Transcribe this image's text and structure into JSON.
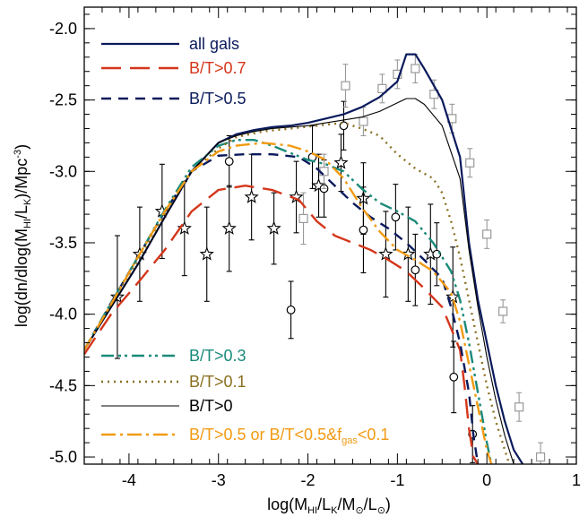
{
  "chart_data": {
    "type": "line",
    "xlabel": "log(MHI/LK/M⊙/L⊙)",
    "ylabel": "log(dn/dlog(MHI/LK)/Mpc⁻³)",
    "xlim": [
      -4.5,
      1.0
    ],
    "ylim": [
      -5.05,
      -1.85
    ],
    "x_ticks": [
      -4,
      -3,
      -2,
      -1,
      0,
      1
    ],
    "x_tick_labels": [
      "-4",
      "-3",
      "-2",
      "-1",
      "0",
      "1"
    ],
    "y_ticks": [
      -5.0,
      -4.5,
      -4.0,
      -3.5,
      -3.0,
      -2.5,
      -2.0
    ],
    "y_tick_labels": [
      "-5.0",
      "-4.5",
      "-4.0",
      "-3.5",
      "-3.0",
      "-2.5",
      "-2.0"
    ],
    "grid": false,
    "legend_placement": [
      "top-left",
      "bottom-left"
    ],
    "series": [
      {
        "name": "all gals",
        "color": "#0a1a5c",
        "dash": "solid",
        "width": 2.2,
        "x": [
          -4.5,
          -4.2,
          -3.9,
          -3.6,
          -3.3,
          -3.0,
          -2.8,
          -2.6,
          -2.4,
          -2.2,
          -2.0,
          -1.8,
          -1.6,
          -1.4,
          -1.2,
          -1.0,
          -0.9,
          -0.8,
          -0.7,
          -0.5,
          -0.3,
          -0.2,
          -0.1,
          0.0,
          0.1,
          0.2,
          0.3,
          0.4
        ],
        "y": [
          -4.25,
          -3.95,
          -3.65,
          -3.32,
          -3.0,
          -2.8,
          -2.74,
          -2.71,
          -2.69,
          -2.68,
          -2.66,
          -2.63,
          -2.6,
          -2.55,
          -2.48,
          -2.37,
          -2.18,
          -2.18,
          -2.28,
          -2.5,
          -2.9,
          -3.5,
          -3.9,
          -4.2,
          -4.5,
          -4.75,
          -4.95,
          -5.05
        ]
      },
      {
        "name": "B/T>0.7",
        "color": "#d4361b",
        "dash": "long-dash",
        "width": 2.4,
        "x": [
          -4.5,
          -4.2,
          -3.9,
          -3.6,
          -3.3,
          -3.0,
          -2.7,
          -2.4,
          -2.1,
          -1.9,
          -1.7,
          -1.5,
          -1.3,
          -1.1,
          -0.9,
          -0.7,
          -0.5,
          -0.4,
          -0.3,
          -0.25,
          -0.2,
          -0.15,
          -0.1
        ],
        "y": [
          -4.28,
          -4.0,
          -3.78,
          -3.55,
          -3.28,
          -3.13,
          -3.1,
          -3.13,
          -3.2,
          -3.35,
          -3.45,
          -3.5,
          -3.55,
          -3.62,
          -3.7,
          -3.82,
          -3.95,
          -4.1,
          -4.25,
          -4.5,
          -4.8,
          -5.0,
          -5.05
        ]
      },
      {
        "name": "B/T>0.5",
        "color": "#0a1a5c",
        "dash": "dash",
        "width": 2.4,
        "x": [
          -4.5,
          -4.2,
          -3.9,
          -3.6,
          -3.3,
          -3.0,
          -2.7,
          -2.4,
          -2.1,
          -1.9,
          -1.7,
          -1.5,
          -1.3,
          -1.1,
          -0.9,
          -0.7,
          -0.5,
          -0.4,
          -0.3,
          -0.2,
          -0.15,
          -0.1
        ],
        "y": [
          -4.25,
          -3.92,
          -3.6,
          -3.28,
          -3.0,
          -2.89,
          -2.88,
          -2.88,
          -2.9,
          -2.98,
          -3.1,
          -3.22,
          -3.32,
          -3.4,
          -3.5,
          -3.62,
          -3.75,
          -3.95,
          -4.2,
          -4.55,
          -4.85,
          -5.05
        ]
      },
      {
        "name": "B/T>0.3",
        "color": "#1a8a7a",
        "dash": "dash-dot-dot",
        "width": 2.4,
        "x": [
          -4.5,
          -4.2,
          -3.9,
          -3.6,
          -3.3,
          -3.0,
          -2.8,
          -2.6,
          -2.4,
          -2.2,
          -2.0,
          -1.8,
          -1.6,
          -1.4,
          -1.2,
          -1.0,
          -0.8,
          -0.6,
          -0.4,
          -0.3,
          -0.2,
          -0.1,
          0.0,
          0.05
        ],
        "y": [
          -4.25,
          -3.92,
          -3.6,
          -3.27,
          -2.97,
          -2.82,
          -2.78,
          -2.78,
          -2.82,
          -2.87,
          -2.92,
          -2.95,
          -3.0,
          -3.12,
          -3.22,
          -3.28,
          -3.35,
          -3.5,
          -3.7,
          -3.9,
          -4.2,
          -4.55,
          -4.9,
          -5.05
        ]
      },
      {
        "name": "B/T>0.1",
        "color": "#8a7020",
        "dash": "dot",
        "width": 2.4,
        "x": [
          -4.5,
          -4.2,
          -3.9,
          -3.6,
          -3.3,
          -3.0,
          -2.8,
          -2.5,
          -2.2,
          -1.9,
          -1.6,
          -1.4,
          -1.2,
          -1.0,
          -0.8,
          -0.6,
          -0.5,
          -0.4,
          -0.3,
          -0.2,
          -0.1,
          0.0,
          0.1,
          0.2,
          0.25
        ],
        "y": [
          -4.25,
          -3.93,
          -3.62,
          -3.3,
          -3.0,
          -2.84,
          -2.76,
          -2.72,
          -2.7,
          -2.68,
          -2.66,
          -2.7,
          -2.75,
          -2.88,
          -2.98,
          -3.05,
          -3.15,
          -3.35,
          -3.6,
          -3.9,
          -4.2,
          -4.5,
          -4.75,
          -4.95,
          -5.05
        ]
      },
      {
        "name": "B/T>0",
        "color": "#000000",
        "dash": "solid",
        "width": 1.1,
        "x": [
          -4.5,
          -4.2,
          -3.9,
          -3.6,
          -3.3,
          -3.0,
          -2.8,
          -2.6,
          -2.4,
          -2.2,
          -2.0,
          -1.8,
          -1.6,
          -1.4,
          -1.2,
          -1.0,
          -0.9,
          -0.8,
          -0.7,
          -0.5,
          -0.3,
          -0.2,
          -0.1,
          0.0,
          0.1,
          0.2,
          0.3
        ],
        "y": [
          -4.25,
          -3.95,
          -3.65,
          -3.32,
          -3.0,
          -2.8,
          -2.75,
          -2.72,
          -2.7,
          -2.69,
          -2.68,
          -2.66,
          -2.64,
          -2.62,
          -2.58,
          -2.52,
          -2.49,
          -2.49,
          -2.53,
          -2.68,
          -3.05,
          -3.55,
          -3.95,
          -4.3,
          -4.6,
          -4.85,
          -5.05
        ]
      },
      {
        "name": "B/T>0.5 or B/T<0.5&fgas<0.1",
        "color": "#f29a12",
        "dash": "dash-dot",
        "width": 2.4,
        "x": [
          -4.5,
          -4.2,
          -3.9,
          -3.6,
          -3.3,
          -3.0,
          -2.8,
          -2.5,
          -2.2,
          -2.0,
          -1.8,
          -1.6,
          -1.4,
          -1.2,
          -1.0,
          -0.8,
          -0.6,
          -0.4,
          -0.3,
          -0.2,
          -0.1,
          0.0,
          0.05
        ],
        "y": [
          -4.25,
          -3.93,
          -3.6,
          -3.28,
          -3.0,
          -2.86,
          -2.82,
          -2.8,
          -2.82,
          -2.86,
          -2.92,
          -3.05,
          -3.25,
          -3.42,
          -3.55,
          -3.62,
          -3.7,
          -3.85,
          -4.05,
          -4.35,
          -4.65,
          -4.95,
          -5.05
        ]
      }
    ],
    "observations": [
      {
        "name": "stars",
        "marker": "star",
        "color": "#000000",
        "x": [
          -4.13,
          -3.88,
          -3.63,
          -3.38,
          -3.13,
          -2.88,
          -2.63,
          -2.38,
          -2.13,
          -1.88,
          -1.63,
          -1.38,
          -1.13,
          -0.88,
          -0.63,
          -0.38
        ],
        "y": [
          -3.88,
          -3.58,
          -3.28,
          -3.4,
          -3.58,
          -3.4,
          -3.18,
          -3.4,
          -3.18,
          -3.1,
          -2.94,
          -3.19,
          -3.58,
          -3.58,
          -3.58,
          -3.88
        ],
        "err": [
          0.43,
          0.33,
          0.33,
          0.33,
          0.33,
          0.3,
          0.3,
          0.25,
          0.25,
          0.22,
          0.2,
          0.25,
          0.3,
          0.33,
          0.35,
          0.35
        ]
      },
      {
        "name": "circles",
        "marker": "circle",
        "color": "#000000",
        "x": [
          -2.88,
          -2.19,
          -1.95,
          -1.82,
          -1.6,
          -1.38,
          -1.02,
          -0.8,
          -0.56,
          -0.37,
          -0.16
        ],
        "y": [
          -2.93,
          -3.97,
          -2.9,
          -3.12,
          -2.68,
          -3.41,
          -3.32,
          -3.69,
          -3.58,
          -4.44,
          -4.84
        ],
        "err": [
          0.18,
          0.2,
          0.22,
          0.2,
          0.17,
          0.3,
          0.23,
          0.25,
          0.22,
          0.25,
          0.2
        ]
      },
      {
        "name": "squares",
        "marker": "square",
        "color": "#999999",
        "x": [
          -2.05,
          -1.82,
          -1.58,
          -1.38,
          -1.17,
          -1.0,
          -0.8,
          -0.59,
          -0.39,
          -0.19,
          0.0,
          0.18,
          0.36,
          0.6
        ],
        "y": [
          -3.33,
          -3.0,
          -2.4,
          -2.65,
          -2.42,
          -2.32,
          -2.28,
          -2.46,
          -2.63,
          -2.94,
          -3.44,
          -3.98,
          -4.65,
          -5.0
        ],
        "err": [
          0.18,
          0.12,
          0.15,
          0.1,
          0.1,
          0.1,
          0.1,
          0.1,
          0.1,
          0.1,
          0.1,
          0.08,
          0.1,
          0.1
        ]
      }
    ],
    "legend_top": [
      {
        "label": "all gals",
        "series": 0
      },
      {
        "label": "B/T>0.7",
        "series": 1
      },
      {
        "label": "B/T>0.5",
        "series": 2
      }
    ],
    "legend_bottom": [
      {
        "label": "B/T>0.3",
        "series": 3
      },
      {
        "label": "B/T>0.1",
        "series": 4
      },
      {
        "label": "B/T>0",
        "series": 5
      },
      {
        "label": "B/T>0.5 or B/T<0.5&fgas<0.1",
        "series": 6
      }
    ]
  }
}
